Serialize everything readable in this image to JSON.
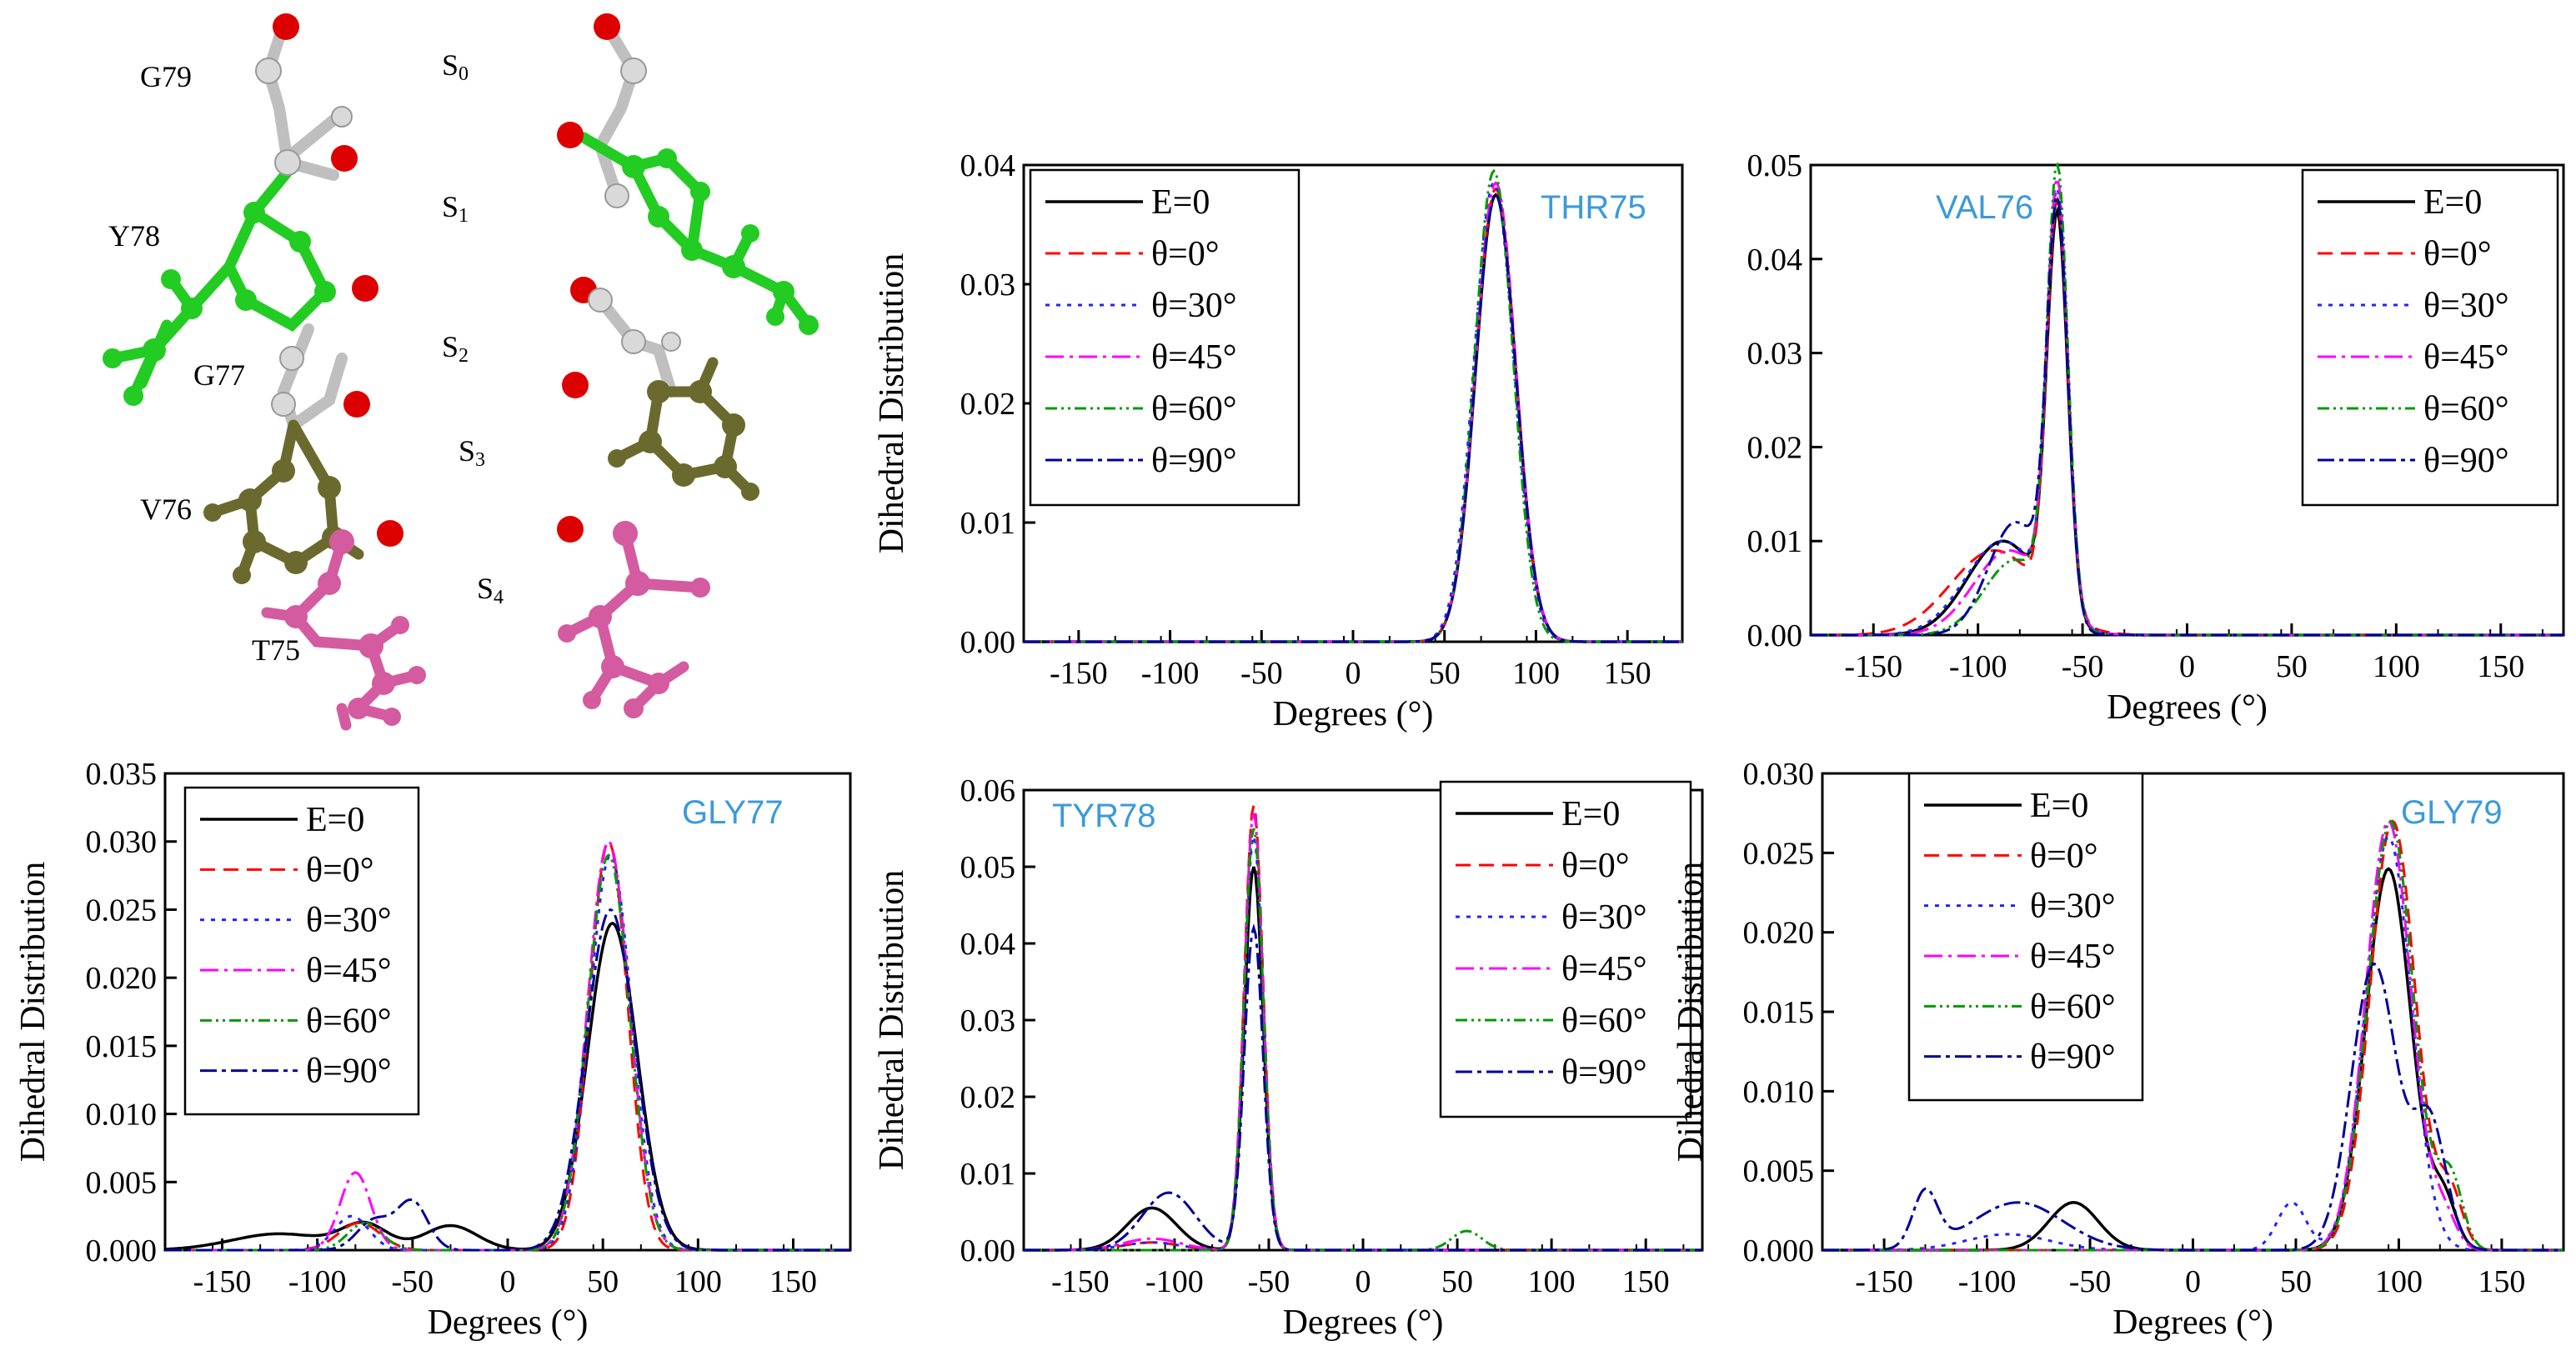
{
  "figure": {
    "molecule": {
      "residue_labels": [
        "G79",
        "Y78",
        "G77",
        "V76",
        "T75"
      ],
      "site_labels": [
        {
          "base": "S",
          "sub": "0"
        },
        {
          "base": "S",
          "sub": "1"
        },
        {
          "base": "S",
          "sub": "2"
        },
        {
          "base": "S",
          "sub": "3"
        },
        {
          "base": "S",
          "sub": "4"
        }
      ],
      "colors": {
        "carbonyl_oxygen": "#dd0000",
        "gly_white": "#d9d9d9",
        "tyr_green": "#22cc22",
        "val_olive": "#6b6a2e",
        "thr_pink": "#d45ba0"
      }
    },
    "legend_labels": [
      "E=0",
      "θ=0°",
      "θ=30°",
      "θ=45°",
      "θ=60°",
      "θ=90°"
    ],
    "series_colors": [
      "#000000",
      "#ff0000",
      "#2222ff",
      "#ff00ff",
      "#009900",
      "#000099"
    ],
    "title_color": "#3b9ad9"
  },
  "chart_data": [
    {
      "type": "line",
      "title": "THR75",
      "xlabel": "Degrees (°)",
      "ylabel": "Dihedral Distribution",
      "xlim": [
        -180,
        180
      ],
      "ylim": [
        0,
        0.04
      ],
      "xticks": [
        -150,
        -100,
        -50,
        0,
        50,
        100,
        150
      ],
      "yticks": [
        0,
        0.01,
        0.02,
        0.03,
        0.04
      ],
      "ytick_labels": [
        "0.00",
        "0.01",
        "0.02",
        "0.03",
        "0.04"
      ],
      "legend_position": "top-left",
      "series": [
        {
          "name": "E=0",
          "peaks": [
            [
              78,
              0.0375,
              11
            ]
          ]
        },
        {
          "name": "θ=0°",
          "peaks": [
            [
              78,
              0.038,
              11
            ]
          ]
        },
        {
          "name": "θ=30°",
          "peaks": [
            [
              77,
              0.0385,
              11
            ]
          ]
        },
        {
          "name": "θ=45°",
          "peaks": [
            [
              78,
              0.0385,
              11
            ]
          ]
        },
        {
          "name": "θ=60°",
          "peaks": [
            [
              77,
              0.0395,
              10.5
            ]
          ]
        },
        {
          "name": "θ=90°",
          "peaks": [
            [
              78,
              0.0375,
              11
            ]
          ]
        }
      ]
    },
    {
      "type": "line",
      "title": "VAL76",
      "xlabel": "Degrees (°)",
      "ylabel": "",
      "xlim": [
        -180,
        180
      ],
      "ylim": [
        0,
        0.05
      ],
      "xticks": [
        -150,
        -100,
        -50,
        0,
        50,
        100,
        150
      ],
      "yticks": [
        0,
        0.01,
        0.02,
        0.03,
        0.04,
        0.05
      ],
      "ytick_labels": [
        "0.00",
        "0.01",
        "0.02",
        "0.03",
        "0.04",
        "0.05"
      ],
      "legend_position": "top-right",
      "series": [
        {
          "name": "E=0",
          "peaks": [
            [
              -62,
              0.042,
              5
            ],
            [
              -88,
              0.01,
              17
            ]
          ]
        },
        {
          "name": "θ=0°",
          "peaks": [
            [
              -62,
              0.043,
              5
            ],
            [
              -92,
              0.009,
              21
            ]
          ]
        },
        {
          "name": "θ=30°",
          "peaks": [
            [
              -62,
              0.044,
              5
            ],
            [
              -88,
              0.01,
              18
            ]
          ]
        },
        {
          "name": "θ=45°",
          "peaks": [
            [
              -62,
              0.045,
              5
            ],
            [
              -85,
              0.009,
              17
            ]
          ]
        },
        {
          "name": "θ=60°",
          "peaks": [
            [
              -62,
              0.047,
              5
            ],
            [
              -82,
              0.008,
              15
            ]
          ]
        },
        {
          "name": "θ=90°",
          "peaks": [
            [
              -62,
              0.043,
              5
            ],
            [
              -82,
              0.012,
              13
            ]
          ]
        }
      ]
    },
    {
      "type": "line",
      "title": "GLY77",
      "xlabel": "Degrees (°)",
      "ylabel": "Dihedral Distribution",
      "xlim": [
        -180,
        180
      ],
      "ylim": [
        0,
        0.035
      ],
      "xticks": [
        -150,
        -100,
        -50,
        0,
        50,
        100,
        150
      ],
      "yticks": [
        0,
        0.005,
        0.01,
        0.015,
        0.02,
        0.025,
        0.03,
        0.035
      ],
      "ytick_labels": [
        "0.000",
        "0.005",
        "0.010",
        "0.015",
        "0.020",
        "0.025",
        "0.030",
        "0.035"
      ],
      "legend_position": "top-left",
      "series": [
        {
          "name": "E=0",
          "peaks": [
            [
              55,
              0.024,
              13
            ],
            [
              -120,
              0.0012,
              25
            ],
            [
              -75,
              0.0018,
              12
            ],
            [
              -30,
              0.0018,
              14
            ]
          ]
        },
        {
          "name": "θ=0°",
          "peaks": [
            [
              53,
              0.03,
              10
            ],
            [
              -78,
              0.002,
              11
            ]
          ]
        },
        {
          "name": "θ=30°",
          "peaks": [
            [
              54,
              0.029,
              11
            ],
            [
              -82,
              0.0025,
              9
            ]
          ]
        },
        {
          "name": "θ=45°",
          "peaks": [
            [
              53,
              0.03,
              11
            ],
            [
              -80,
              0.0057,
              8
            ]
          ]
        },
        {
          "name": "θ=60°",
          "peaks": [
            [
              53,
              0.029,
              11
            ],
            [
              -75,
              0.002,
              9
            ]
          ]
        },
        {
          "name": "θ=90°",
          "peaks": [
            [
              54,
              0.025,
              13
            ],
            [
              -70,
              0.0022,
              9
            ],
            [
              -50,
              0.0035,
              8
            ]
          ]
        }
      ]
    },
    {
      "type": "line",
      "title": "TYR78",
      "xlabel": "Degrees (°)",
      "ylabel": "Dihedral Distribution",
      "xlim": [
        -180,
        180
      ],
      "ylim": [
        0,
        0.06
      ],
      "xticks": [
        -150,
        -100,
        -50,
        0,
        50,
        100,
        150
      ],
      "yticks": [
        0,
        0.01,
        0.02,
        0.03,
        0.04,
        0.05,
        0.06
      ],
      "ytick_labels": [
        "0.00",
        "0.01",
        "0.02",
        "0.03",
        "0.04",
        "0.05",
        "0.06"
      ],
      "legend_position": "top-right",
      "series": [
        {
          "name": "E=0",
          "peaks": [
            [
              -58,
              0.05,
              5
            ],
            [
              -112,
              0.0055,
              13
            ]
          ]
        },
        {
          "name": "θ=0°",
          "peaks": [
            [
              -58,
              0.058,
              5
            ],
            [
              -112,
              0.001,
              15
            ]
          ]
        },
        {
          "name": "θ=30°",
          "peaks": [
            [
              -58,
              0.054,
              5
            ],
            [
              -112,
              0.001,
              15
            ]
          ]
        },
        {
          "name": "θ=45°",
          "peaks": [
            [
              -58,
              0.057,
              5
            ],
            [
              -112,
              0.0015,
              15
            ]
          ]
        },
        {
          "name": "θ=60°",
          "peaks": [
            [
              -58,
              0.055,
              5
            ],
            [
              55,
              0.0025,
              8
            ]
          ]
        },
        {
          "name": "θ=90°",
          "peaks": [
            [
              -58,
              0.042,
              5
            ],
            [
              -103,
              0.0075,
              14
            ]
          ]
        }
      ]
    },
    {
      "type": "line",
      "title": "GLY79",
      "xlabel": "Degrees (°)",
      "ylabel": "Dihedral Distribution",
      "xlim": [
        -180,
        180
      ],
      "ylim": [
        0,
        0.03
      ],
      "xticks": [
        -150,
        -100,
        -50,
        0,
        50,
        100,
        150
      ],
      "yticks": [
        0,
        0.005,
        0.01,
        0.015,
        0.02,
        0.025,
        0.03
      ],
      "ytick_labels": [
        "0.000",
        "0.005",
        "0.010",
        "0.015",
        "0.020",
        "0.025",
        "0.030"
      ],
      "legend_position": "top-left",
      "series": [
        {
          "name": "E=0",
          "peaks": [
            [
              95,
              0.024,
              11
            ],
            [
              -58,
              0.003,
              12
            ],
            [
              122,
              0.003,
              6
            ]
          ]
        },
        {
          "name": "θ=0°",
          "peaks": [
            [
              97,
              0.027,
              11
            ],
            [
              125,
              0.0035,
              6
            ]
          ]
        },
        {
          "name": "θ=30°",
          "peaks": [
            [
              95,
              0.026,
              11
            ],
            [
              48,
              0.003,
              7
            ],
            [
              -90,
              0.001,
              20
            ]
          ]
        },
        {
          "name": "θ=45°",
          "peaks": [
            [
              95,
              0.027,
              11
            ],
            [
              122,
              0.002,
              6
            ]
          ]
        },
        {
          "name": "θ=60°",
          "peaks": [
            [
              96,
              0.027,
              11
            ],
            [
              125,
              0.0045,
              6
            ]
          ]
        },
        {
          "name": "θ=90°",
          "peaks": [
            [
              88,
              0.018,
              11
            ],
            [
              115,
              0.008,
              8
            ],
            [
              -130,
              0.0035,
              6
            ],
            [
              -85,
              0.003,
              22
            ]
          ]
        }
      ]
    }
  ]
}
